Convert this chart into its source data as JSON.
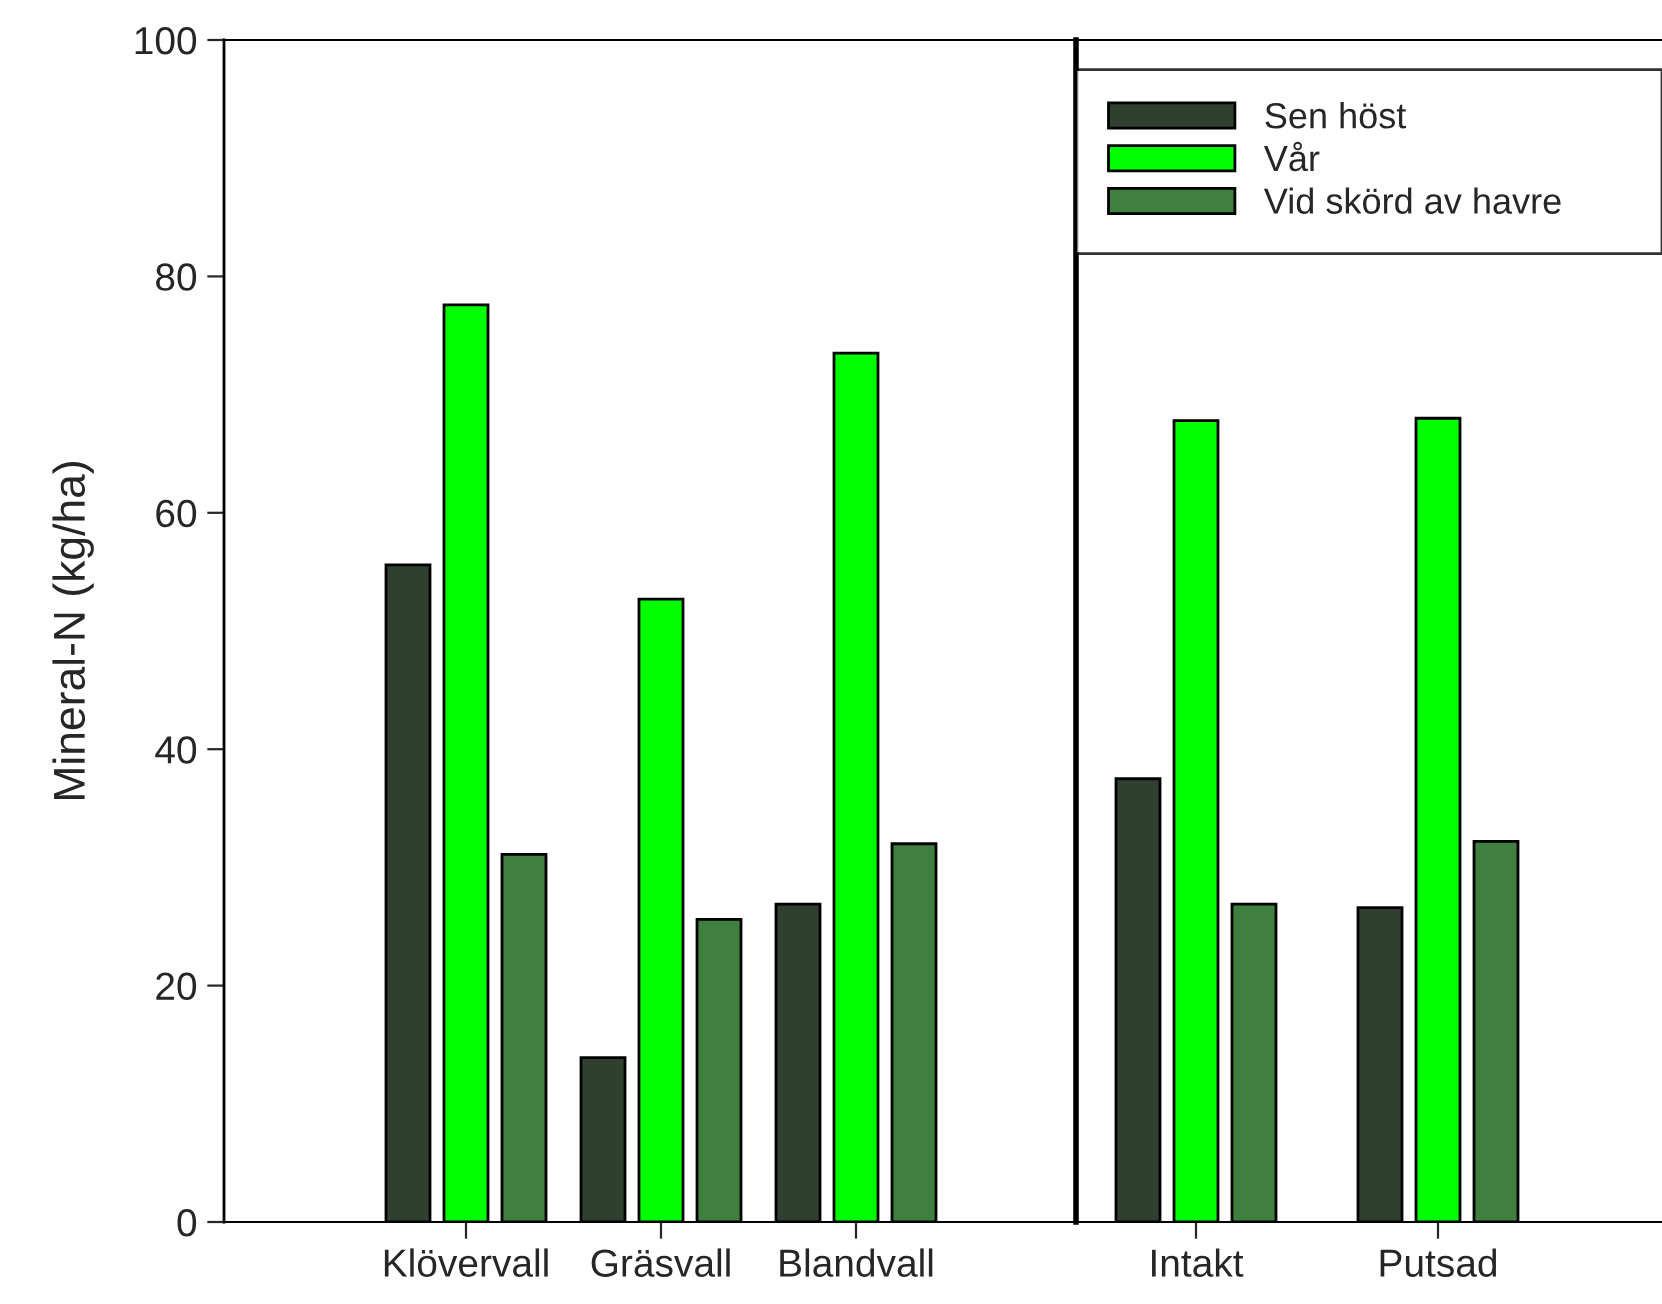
{
  "chart_data": [
    {
      "type": "bar",
      "ylabel": "Mineral-N (kg/ha)",
      "categories": [
        "Klövervall",
        "Gräsvall",
        "Blandvall"
      ],
      "ylim": [
        0,
        100
      ],
      "yticks": [
        0,
        20,
        40,
        60,
        80,
        100
      ],
      "grid": false,
      "legend": false,
      "series": [
        {
          "color": "#304030",
          "values": [
            55.6,
            13.9,
            26.9
          ]
        },
        {
          "color": "#00ff00",
          "values": [
            77.6,
            52.7,
            73.5
          ]
        },
        {
          "color": "#3f7f3f",
          "values": [
            31.1,
            25.6,
            32.0
          ]
        }
      ]
    },
    {
      "type": "bar",
      "categories": [
        "Intakt",
        "Putsad"
      ],
      "ylim": [
        0,
        100
      ],
      "tick_labels": "x",
      "grid": false,
      "legend": "top",
      "series": [
        {
          "name": "Sen höst",
          "color": "#304030",
          "values": [
            37.5,
            26.6
          ]
        },
        {
          "name": "Vår",
          "color": "#00ff00",
          "values": [
            67.8,
            68.0
          ]
        },
        {
          "name": "Vid skörd av havre",
          "color": "#3f7f3f",
          "values": [
            26.9,
            32.2
          ]
        }
      ]
    }
  ]
}
